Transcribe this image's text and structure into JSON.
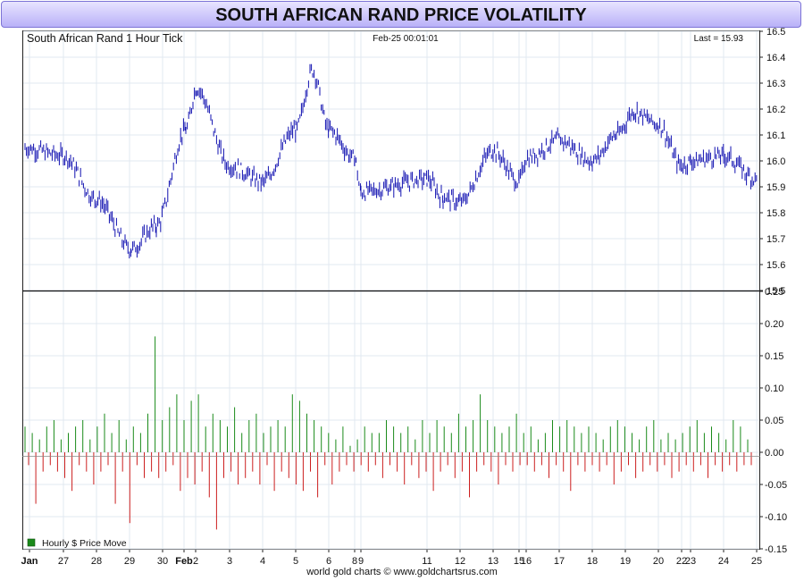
{
  "title": "SOUTH AFRICAN RAND PRICE VOLATILITY",
  "footer": "world gold charts © www.goldchartsrus.com",
  "colors": {
    "price_bar": "#1010b0",
    "gain_bar": "#1a8a1a",
    "loss_bar": "#cc1f1f",
    "grid": "#e2e8f0",
    "title_bg": "#c4bdfa"
  },
  "chart_data": [
    {
      "type": "line",
      "panel": "price",
      "title": "South African Rand 1 Hour Tick",
      "timestamp": "Feb-25  00:01:01",
      "last_label": "Last = 15.93",
      "ylim": [
        15.5,
        16.5
      ],
      "yticks": [
        "15.5",
        "15.6",
        "15.7",
        "15.8",
        "15.9",
        "16.0",
        "16.1",
        "16.2",
        "16.3",
        "16.4",
        "16.5"
      ],
      "xticks": [
        "Jan",
        "27",
        "28",
        "29",
        "30",
        "Feb",
        "2",
        "3",
        "4",
        "5",
        "6",
        "8",
        "9",
        "11",
        "12",
        "13",
        "15",
        "16",
        "17",
        "18",
        "19",
        "20",
        "22",
        "23",
        "24",
        "25"
      ],
      "x": [
        "Jan 26",
        "Jan 27",
        "Jan 28",
        "Jan 29 12:00",
        "Jan 30",
        "Jan 31",
        "Feb 2",
        "Feb 3",
        "Feb 4",
        "Feb 5",
        "Feb 5 18:00",
        "Feb 6",
        "Feb 8",
        "Feb 9",
        "Feb 11",
        "Feb 12",
        "Feb 12 12:00",
        "Feb 13",
        "Feb 15",
        "Feb 16",
        "Feb 17",
        "Feb 18",
        "Feb 19",
        "Feb 19 12:00",
        "Feb 20",
        "Feb 22",
        "Feb 23",
        "Feb 24",
        "Feb 25"
      ],
      "series": [
        {
          "values": [
            16.05,
            16.02,
            15.85,
            15.66,
            15.75,
            16.12,
            16.28,
            15.98,
            15.92,
            16.12,
            16.35,
            16.12,
            16.01,
            15.88,
            15.93,
            15.86,
            15.84,
            16.04,
            15.92,
            16.01,
            16.08,
            16.0,
            16.1,
            16.19,
            16.14,
            15.98,
            16.0,
            16.02,
            15.93
          ]
        }
      ]
    },
    {
      "type": "bar",
      "panel": "volatility",
      "legend": "Hourly $ Price Move",
      "ylim": [
        -0.15,
        0.25
      ],
      "yticks": [
        "-0.15",
        "-0.10",
        "-0.05",
        "0.00",
        "0.05",
        "0.10",
        "0.15",
        "0.20",
        "0.25"
      ],
      "series": [
        {
          "name": "Hourly $ Price Move",
          "values": [
            0.04,
            -0.02,
            0.03,
            -0.08,
            0.02,
            -0.03,
            0.04,
            -0.02,
            0.05,
            -0.03,
            0.02,
            -0.04,
            0.03,
            -0.06,
            0.04,
            -0.02,
            0.05,
            -0.03,
            0.02,
            -0.05,
            0.04,
            -0.03,
            0.06,
            -0.02,
            0.03,
            -0.08,
            0.05,
            -0.03,
            0.02,
            -0.11,
            0.04,
            -0.02,
            0.03,
            -0.04,
            0.06,
            -0.03,
            0.18,
            -0.04,
            0.05,
            -0.03,
            0.07,
            -0.02,
            0.09,
            -0.06,
            0.05,
            -0.04,
            0.08,
            -0.05,
            0.09,
            -0.03,
            0.04,
            -0.07,
            0.06,
            -0.12,
            0.05,
            -0.04,
            0.04,
            -0.03,
            0.07,
            -0.05,
            0.03,
            -0.04,
            0.05,
            -0.03,
            0.06,
            -0.05,
            0.03,
            -0.02,
            0.04,
            -0.06,
            0.05,
            -0.03,
            0.04,
            -0.04,
            0.09,
            -0.05,
            0.08,
            -0.06,
            0.06,
            -0.03,
            0.05,
            -0.07,
            0.04,
            -0.02,
            0.03,
            -0.05,
            0.02,
            -0.03,
            0.04,
            -0.02,
            0.01,
            -0.03,
            0.02,
            -0.02,
            0.04,
            -0.03,
            0.03,
            -0.02,
            0.03,
            -0.04,
            0.05,
            -0.02,
            0.04,
            -0.03,
            0.03,
            -0.05,
            0.04,
            -0.02,
            0.02,
            -0.04,
            0.05,
            -0.03,
            0.03,
            -0.06,
            0.05,
            -0.03,
            0.04,
            -0.02,
            0.03,
            -0.04,
            0.06,
            -0.03,
            0.04,
            -0.07,
            0.05,
            -0.03,
            0.09,
            -0.02,
            0.05,
            -0.03,
            0.04,
            -0.05,
            0.03,
            -0.02,
            0.04,
            -0.03,
            0.06,
            -0.02,
            0.03,
            -0.02,
            0.04,
            -0.03,
            0.02,
            -0.02,
            0.03,
            -0.04,
            0.05,
            -0.02,
            0.04,
            -0.03,
            0.05,
            -0.06,
            0.04,
            -0.02,
            0.03,
            -0.03,
            0.04,
            -0.02,
            0.03,
            -0.03,
            0.02,
            -0.02,
            0.04,
            -0.05,
            0.05,
            -0.03,
            0.04,
            -0.02,
            0.03,
            -0.04,
            0.02,
            -0.03,
            0.04,
            -0.02,
            0.05,
            -0.03,
            0.02,
            -0.02,
            0.03,
            -0.04,
            0.02,
            -0.03,
            0.03,
            -0.02,
            0.04,
            -0.03,
            0.05,
            -0.02,
            0.03,
            -0.04,
            0.04,
            -0.02,
            0.03,
            -0.03,
            0.02,
            -0.02,
            0.05,
            -0.03,
            0.04,
            -0.02,
            0.02,
            -0.02
          ]
        }
      ]
    }
  ]
}
